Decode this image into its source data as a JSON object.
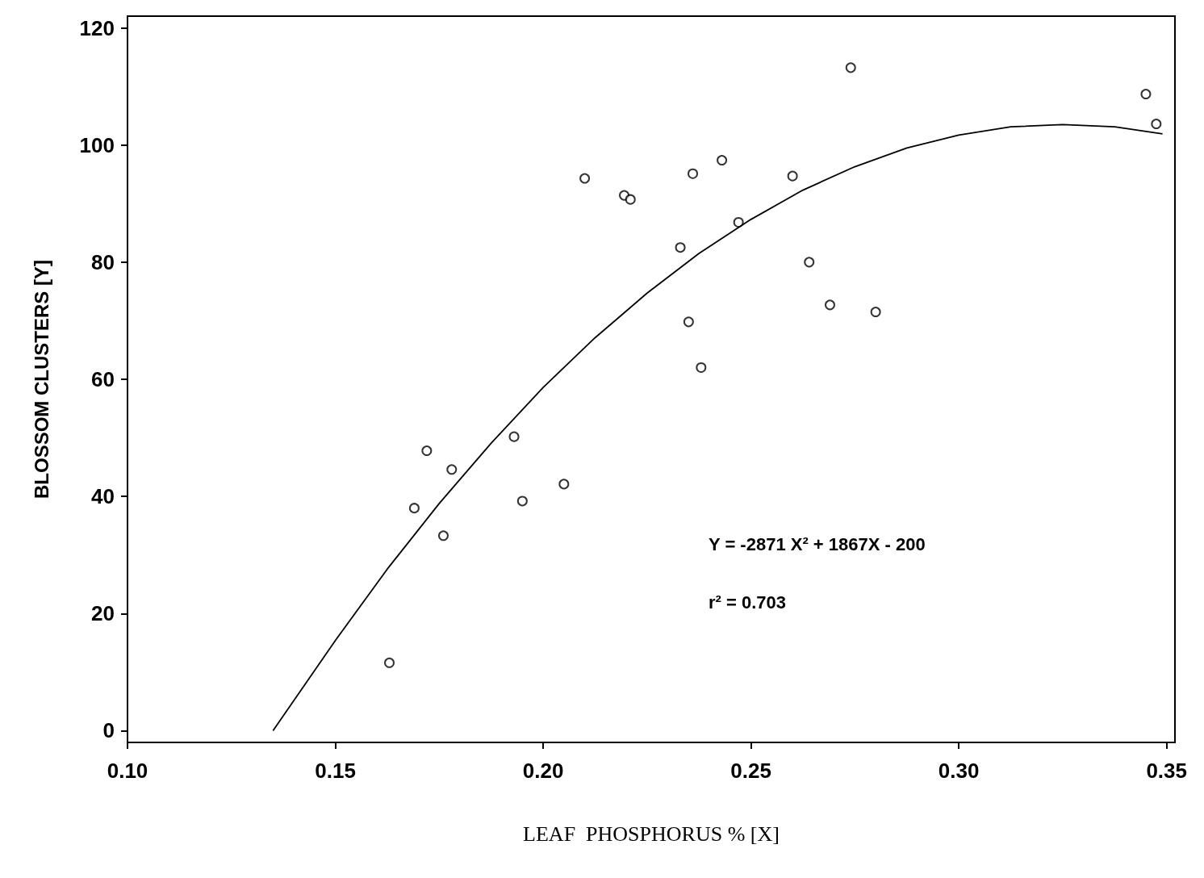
{
  "chart_data": {
    "type": "scatter",
    "xlabel": "LEAF  PHOSPHORUS % [X]",
    "ylabel": "BLOSSOM CLUSTERS [Y]",
    "xlim": [
      0.1,
      0.352
    ],
    "ylim": [
      -2,
      122
    ],
    "xticks": [
      {
        "value": 0.1,
        "label": "0.10"
      },
      {
        "value": 0.15,
        "label": "0.15"
      },
      {
        "value": 0.2,
        "label": "0.20"
      },
      {
        "value": 0.25,
        "label": "0.25"
      },
      {
        "value": 0.3,
        "label": "0.30"
      },
      {
        "value": 0.35,
        "label": "0.35"
      }
    ],
    "yticks": [
      0,
      20,
      40,
      60,
      80,
      100,
      120
    ],
    "grid": false,
    "annotations": [
      "Y = -2871 X² + 1867X - 200",
      "r² = 0.703"
    ],
    "series": [
      {
        "color": "#000000",
        "marker": "circle",
        "x": [
          0.163,
          0.169,
          0.172,
          0.176,
          0.178,
          0.193,
          0.195,
          0.205,
          0.21,
          0.2195,
          0.221,
          0.233,
          0.235,
          0.236,
          0.238,
          0.243,
          0.247,
          0.26,
          0.264,
          0.269,
          0.274,
          0.28,
          0.345,
          0.3475
        ],
        "values": [
          11.6,
          38,
          47.8,
          33.3,
          44.6,
          50.2,
          39.2,
          42.1,
          94.3,
          91.4,
          90.7,
          82.5,
          69.8,
          95.1,
          62,
          97.4,
          86.8,
          94.7,
          80,
          72.7,
          113.2,
          71.5,
          108.7,
          103.6
        ]
      },
      {
        "type": "line",
        "color": "#000000",
        "marker": "none",
        "x": [
          0.135,
          0.15,
          0.1625,
          0.175,
          0.1875,
          0.2,
          0.2125,
          0.225,
          0.2375,
          0.25,
          0.2625,
          0.275,
          0.2875,
          0.3,
          0.3125,
          0.325,
          0.3375,
          0.349
        ],
        "values": [
          0,
          15.4,
          27.6,
          38.8,
          49.1,
          58.6,
          67.1,
          74.7,
          81.5,
          87.3,
          92.3,
          96.3,
          99.5,
          101.7,
          103.1,
          103.5,
          103.1,
          101.9
        ]
      }
    ]
  }
}
